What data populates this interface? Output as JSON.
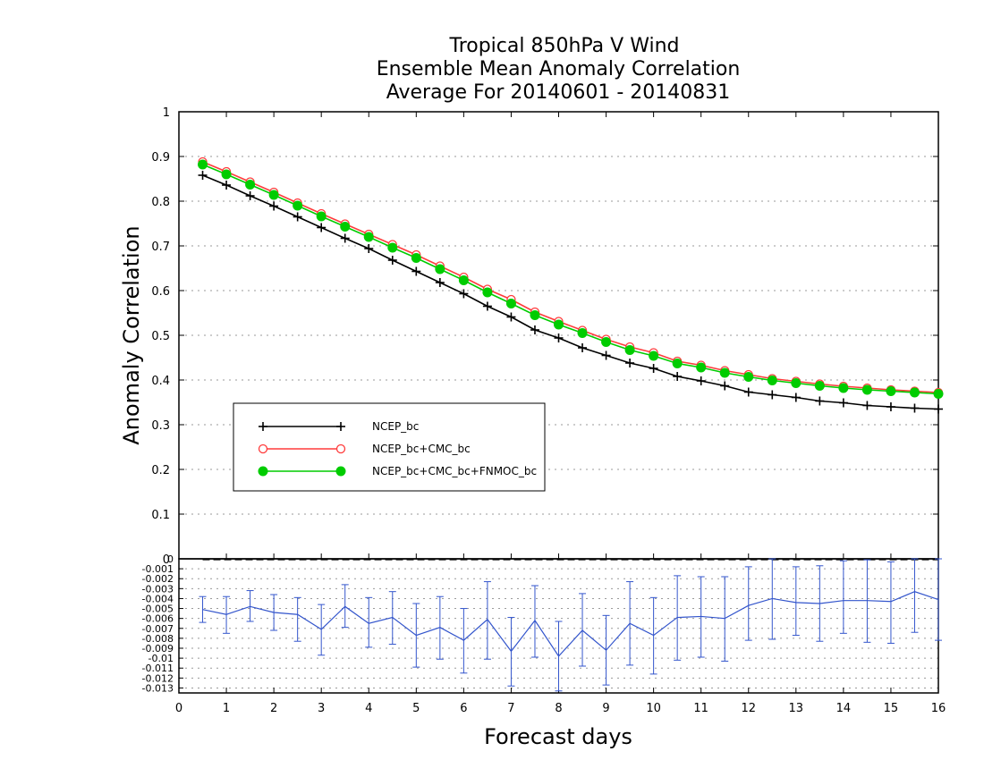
{
  "chart_data": [
    {
      "type": "line",
      "title_lines": [
        "Tropical 850hPa V Wind",
        "Ensemble Mean Anomaly Correlation",
        "Average For 20140601 - 20140831"
      ],
      "xlabel": "Forecast days",
      "ylabel": "Anomaly Correlation",
      "xlim": [
        0,
        16
      ],
      "ylim": [
        0,
        1
      ],
      "x_ticks": [
        "0",
        "1",
        "2",
        "3",
        "4",
        "5",
        "6",
        "7",
        "8",
        "9",
        "10",
        "11",
        "12",
        "13",
        "14",
        "15",
        "16"
      ],
      "y_ticks": [
        "0",
        "0.1",
        "0.2",
        "0.3",
        "0.4",
        "0.5",
        "0.6",
        "0.7",
        "0.8",
        "0.9",
        "1"
      ],
      "grid": true,
      "legend_position": "left-center",
      "x": [
        0.5,
        1,
        1.5,
        2,
        2.5,
        3,
        3.5,
        4,
        4.5,
        5,
        5.5,
        6,
        6.5,
        7,
        7.5,
        8,
        8.5,
        9,
        9.5,
        10,
        10.5,
        11,
        11.5,
        12,
        12.5,
        13,
        13.5,
        14,
        14.5,
        15,
        15.5,
        16
      ],
      "series": [
        {
          "name": "NCEP_bc",
          "color": "#000000",
          "marker": "plus",
          "values": [
            0.858,
            0.836,
            0.812,
            0.789,
            0.765,
            0.741,
            0.717,
            0.694,
            0.668,
            0.643,
            0.618,
            0.593,
            0.565,
            0.541,
            0.512,
            0.494,
            0.472,
            0.455,
            0.438,
            0.426,
            0.408,
            0.398,
            0.387,
            0.373,
            0.367,
            0.361,
            0.353,
            0.349,
            0.343,
            0.34,
            0.337,
            0.335
          ]
        },
        {
          "name": "NCEP_bc+CMC_bc",
          "color": "#ff3b3b",
          "marker": "open-circle",
          "values": [
            0.888,
            0.866,
            0.843,
            0.82,
            0.796,
            0.772,
            0.749,
            0.726,
            0.703,
            0.68,
            0.655,
            0.63,
            0.603,
            0.58,
            0.552,
            0.531,
            0.511,
            0.491,
            0.474,
            0.461,
            0.442,
            0.433,
            0.421,
            0.412,
            0.403,
            0.397,
            0.391,
            0.386,
            0.382,
            0.378,
            0.375,
            0.372
          ]
        },
        {
          "name": "NCEP_bc+CMC_bc+FNMOC_bc",
          "color": "#00cc00",
          "marker": "filled-circle",
          "values": [
            0.882,
            0.86,
            0.837,
            0.814,
            0.79,
            0.766,
            0.743,
            0.72,
            0.696,
            0.673,
            0.648,
            0.623,
            0.596,
            0.571,
            0.545,
            0.524,
            0.505,
            0.485,
            0.467,
            0.454,
            0.437,
            0.428,
            0.416,
            0.407,
            0.399,
            0.393,
            0.387,
            0.382,
            0.378,
            0.375,
            0.372,
            0.369
          ]
        }
      ]
    },
    {
      "type": "line",
      "xlim": [
        0,
        16
      ],
      "ylim": [
        -0.0135,
        0
      ],
      "y_ticks": [
        "0",
        "-0.001",
        "-0.002",
        "-0.003",
        "-0.004",
        "-0.005",
        "-0.006",
        "-0.007",
        "-0.008",
        "-0.009",
        "-0.01",
        "-0.011",
        "-0.012",
        "-0.013"
      ],
      "grid": true,
      "x": [
        0.5,
        1,
        1.5,
        2,
        2.5,
        3,
        3.5,
        4,
        4.5,
        5,
        5.5,
        6,
        6.5,
        7,
        7.5,
        8,
        8.5,
        9,
        9.5,
        10,
        10.5,
        11,
        11.5,
        12,
        12.5,
        13,
        13.5,
        14,
        14.5,
        15,
        15.5,
        16
      ],
      "series": [
        {
          "color": "#3355cc",
          "error_bars": true,
          "values": [
            -0.0051,
            -0.0056,
            -0.0048,
            -0.0054,
            -0.0056,
            -0.0071,
            -0.0048,
            -0.0065,
            -0.0059,
            -0.0077,
            -0.0069,
            -0.0082,
            -0.0061,
            -0.0093,
            -0.0062,
            -0.0098,
            -0.0072,
            -0.0092,
            -0.0065,
            -0.0077,
            -0.0059,
            -0.0058,
            -0.006,
            -0.0047,
            -0.004,
            -0.0044,
            -0.0045,
            -0.0042,
            -0.0042,
            -0.0043,
            -0.0033,
            -0.0041
          ],
          "err_low": [
            -0.0064,
            -0.0075,
            -0.0063,
            -0.0072,
            -0.0083,
            -0.0097,
            -0.0069,
            -0.0089,
            -0.0086,
            -0.0109,
            -0.0101,
            -0.0115,
            -0.0101,
            -0.0128,
            -0.0099,
            -0.0133,
            -0.0108,
            -0.0127,
            -0.0107,
            -0.0116,
            -0.0102,
            -0.0099,
            -0.0103,
            -0.0082,
            -0.0081,
            -0.0077,
            -0.0083,
            -0.0075,
            -0.0084,
            -0.0085,
            -0.0074,
            -0.0082
          ],
          "err_high": [
            -0.0038,
            -0.0038,
            -0.0032,
            -0.0036,
            -0.0039,
            -0.0046,
            -0.0026,
            -0.0039,
            -0.0033,
            -0.0045,
            -0.0038,
            -0.005,
            -0.0023,
            -0.0059,
            -0.0027,
            -0.0063,
            -0.0035,
            -0.0057,
            -0.0023,
            -0.0039,
            -0.0017,
            -0.0018,
            -0.0018,
            -0.0008,
            0.0,
            -0.0008,
            -0.0007,
            -0.0002,
            -0.0001,
            -0.0003,
            0.0,
            0.0
          ]
        }
      ]
    }
  ]
}
